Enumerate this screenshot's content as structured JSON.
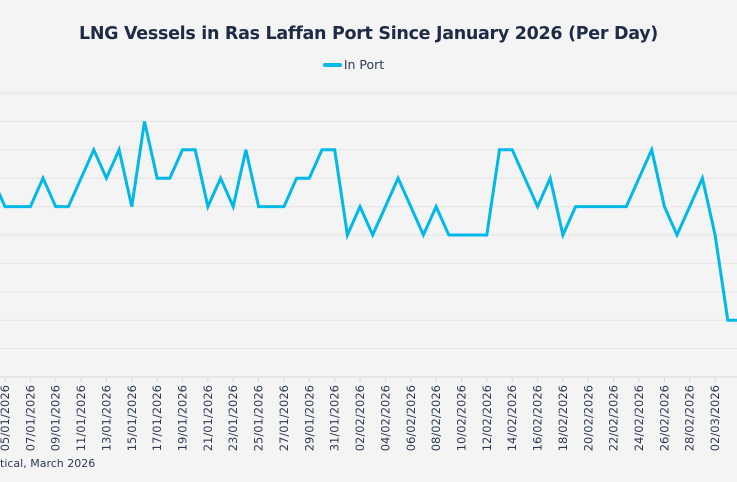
{
  "chart_data": {
    "type": "line",
    "title": "LNG Vessels in Ras Laffan Port Since January 2026 (Per Day)",
    "xlabel": "",
    "ylabel": "",
    "y_tick_labels_visible": false,
    "ylim": [
      0,
      10
    ],
    "grid": true,
    "legend_position": "top-center",
    "series": [
      {
        "name": "In Port",
        "color": "#00b9e8",
        "x": [
          "04/01/2026",
          "05/01/2026",
          "06/01/2026",
          "07/01/2026",
          "08/01/2026",
          "09/01/2026",
          "10/01/2026",
          "11/01/2026",
          "12/01/2026",
          "13/01/2026",
          "14/01/2026",
          "15/01/2026",
          "16/01/2026",
          "17/01/2026",
          "18/01/2026",
          "19/01/2026",
          "20/01/2026",
          "21/01/2026",
          "22/01/2026",
          "23/01/2026",
          "24/01/2026",
          "25/01/2026",
          "26/01/2026",
          "27/01/2026",
          "28/01/2026",
          "29/01/2026",
          "30/01/2026",
          "31/01/2026",
          "01/02/2026",
          "02/02/2026",
          "03/02/2026",
          "04/02/2026",
          "05/02/2026",
          "06/02/2026",
          "07/02/2026",
          "08/02/2026",
          "09/02/2026",
          "10/02/2026",
          "11/02/2026",
          "12/02/2026",
          "13/02/2026",
          "14/02/2026",
          "15/02/2026",
          "16/02/2026",
          "17/02/2026",
          "18/02/2026",
          "19/02/2026",
          "20/02/2026",
          "21/02/2026",
          "22/02/2026",
          "23/02/2026",
          "24/02/2026",
          "25/02/2026",
          "26/02/2026",
          "27/02/2026",
          "28/02/2026",
          "01/03/2026",
          "02/03/2026",
          "03/03/2026",
          "04/03/2026"
        ],
        "values": [
          7,
          6,
          6,
          6,
          7,
          6,
          6,
          7,
          8,
          7,
          8,
          6,
          9,
          7,
          7,
          8,
          8,
          6,
          7,
          6,
          8,
          6,
          6,
          6,
          7,
          7,
          8,
          8,
          5,
          6,
          5,
          6,
          7,
          6,
          5,
          6,
          5,
          5,
          5,
          5,
          8,
          8,
          7,
          6,
          7,
          5,
          6,
          6,
          6,
          6,
          6,
          7,
          8,
          6,
          5,
          6,
          7,
          5,
          2,
          2
        ]
      }
    ],
    "x_tick_labels": [
      "05/01/2026",
      "07/01/2026",
      "09/01/2026",
      "11/01/2026",
      "13/01/2026",
      "15/01/2026",
      "17/01/2026",
      "19/01/2026",
      "21/01/2026",
      "23/01/2026",
      "25/01/2026",
      "27/01/2026",
      "29/01/2026",
      "31/01/2026",
      "02/02/2026",
      "04/02/2026",
      "06/02/2026",
      "08/02/2026",
      "10/02/2026",
      "12/02/2026",
      "14/02/2026",
      "16/02/2026",
      "18/02/2026",
      "20/02/2026",
      "22/02/2026",
      "24/02/2026",
      "26/02/2026",
      "28/02/2026",
      "02/03/2026"
    ],
    "legend": [
      "In Port"
    ],
    "source": "tical, March 2026"
  }
}
